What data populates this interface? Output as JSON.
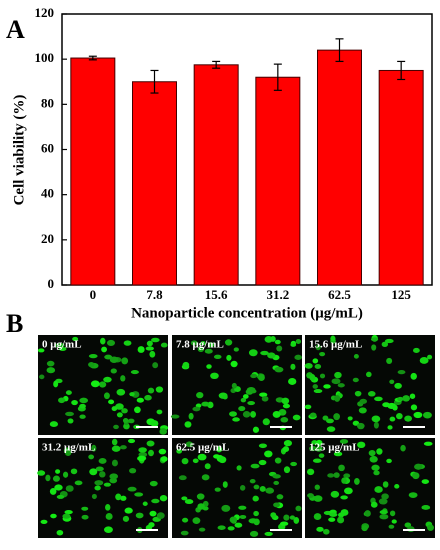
{
  "chart_data": {
    "type": "bar",
    "panel_label": "A",
    "ylabel": "Cell viability (%)",
    "xlabel": "Nanoparticle concentration (μg/mL)",
    "categories": [
      "0",
      "7.8",
      "15.6",
      "31.2",
      "62.5",
      "125"
    ],
    "values": [
      100.5,
      90,
      97.5,
      92,
      104,
      95
    ],
    "errors": [
      0.8,
      5,
      1.5,
      5.8,
      5,
      4
    ],
    "color": "#ff0000",
    "ylim": [
      0,
      120
    ],
    "yticks": [
      0,
      20,
      40,
      60,
      80,
      100,
      120
    ]
  },
  "panel_b": {
    "label": "B",
    "images": [
      "0 μg/mL",
      "7.8 μg/mL",
      "15.6 μg/mL",
      "31.2 μg/mL",
      "62.5 μg/mL",
      "125 μg/mL"
    ]
  }
}
